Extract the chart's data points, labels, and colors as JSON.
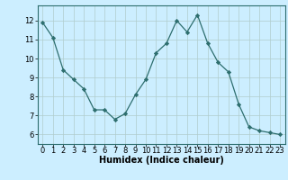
{
  "x": [
    0,
    1,
    2,
    3,
    4,
    5,
    6,
    7,
    8,
    9,
    10,
    11,
    12,
    13,
    14,
    15,
    16,
    17,
    18,
    19,
    20,
    21,
    22,
    23
  ],
  "y": [
    11.9,
    11.1,
    9.4,
    8.9,
    8.4,
    7.3,
    7.3,
    6.8,
    7.1,
    8.1,
    8.9,
    10.3,
    10.8,
    12.0,
    11.4,
    12.3,
    10.8,
    9.8,
    9.3,
    7.6,
    6.4,
    6.2,
    6.1,
    6.0
  ],
  "line_color": "#2d6e6e",
  "marker": "D",
  "marker_size": 2.2,
  "bg_color": "#cceeff",
  "grid_color": "#b0cccc",
  "xlabel": "Humidex (Indice chaleur)",
  "ylabel": "",
  "xlim": [
    -0.5,
    23.5
  ],
  "ylim": [
    5.5,
    12.8
  ],
  "yticks": [
    6,
    7,
    8,
    9,
    10,
    11,
    12
  ],
  "xticks": [
    0,
    1,
    2,
    3,
    4,
    5,
    6,
    7,
    8,
    9,
    10,
    11,
    12,
    13,
    14,
    15,
    16,
    17,
    18,
    19,
    20,
    21,
    22,
    23
  ],
  "xlabel_fontsize": 7,
  "tick_fontsize": 6,
  "linewidth": 0.9
}
